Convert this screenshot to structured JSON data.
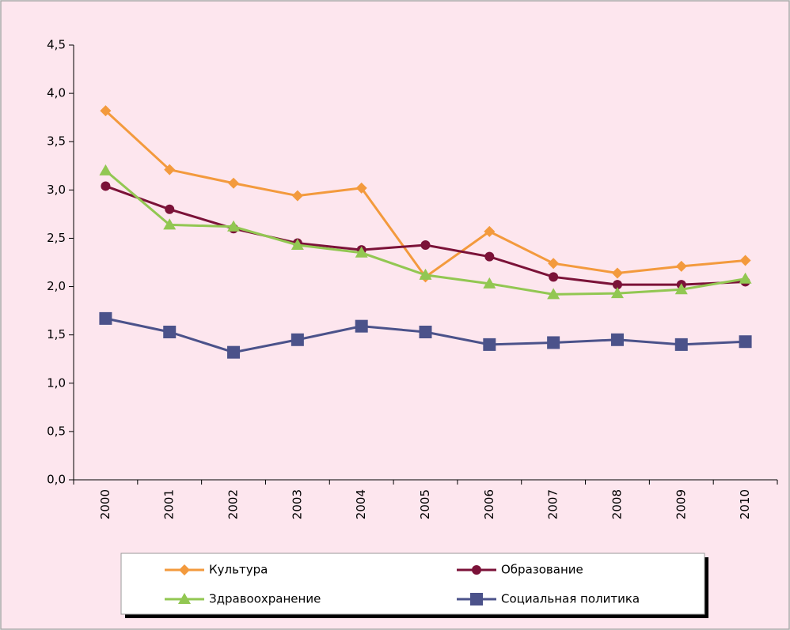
{
  "chart_data": {
    "type": "line",
    "categories": [
      "2000",
      "2001",
      "2002",
      "2003",
      "2004",
      "2005",
      "2006",
      "2007",
      "2008",
      "2009",
      "2010"
    ],
    "series": [
      {
        "name": "Культура",
        "color": "#f39a3d",
        "marker": "diamond",
        "values": [
          3.82,
          3.21,
          3.07,
          2.94,
          3.02,
          2.1,
          2.57,
          2.24,
          2.14,
          2.21,
          2.27
        ]
      },
      {
        "name": "Образование",
        "color": "#7b1238",
        "marker": "circle",
        "values": [
          3.04,
          2.8,
          2.6,
          2.45,
          2.38,
          2.43,
          2.31,
          2.1,
          2.02,
          2.02,
          2.05
        ]
      },
      {
        "name": "Здравоохранение",
        "color": "#92c752",
        "marker": "triangle",
        "values": [
          3.2,
          2.64,
          2.62,
          2.43,
          2.35,
          2.12,
          2.03,
          1.92,
          1.93,
          1.97,
          2.08
        ]
      },
      {
        "name": "Социальная политика",
        "color": "#4b528a",
        "marker": "square",
        "values": [
          1.67,
          1.53,
          1.32,
          1.45,
          1.59,
          1.53,
          1.4,
          1.42,
          1.45,
          1.4,
          1.43
        ]
      }
    ],
    "ylim": [
      0,
      4.5
    ],
    "yticks": [
      {
        "value": 0,
        "label": "0,0"
      },
      {
        "value": 0.5,
        "label": "0,5"
      },
      {
        "value": 1,
        "label": "1,0"
      },
      {
        "value": 1.5,
        "label": "1,5"
      },
      {
        "value": 2,
        "label": "2,0"
      },
      {
        "value": 2.5,
        "label": "2,5"
      },
      {
        "value": 3,
        "label": "3,0"
      },
      {
        "value": 3.5,
        "label": "3,5"
      },
      {
        "value": 4,
        "label": "4,0"
      },
      {
        "value": 4.5,
        "label": "4,5"
      }
    ],
    "grid": false,
    "legend": "bottom"
  }
}
